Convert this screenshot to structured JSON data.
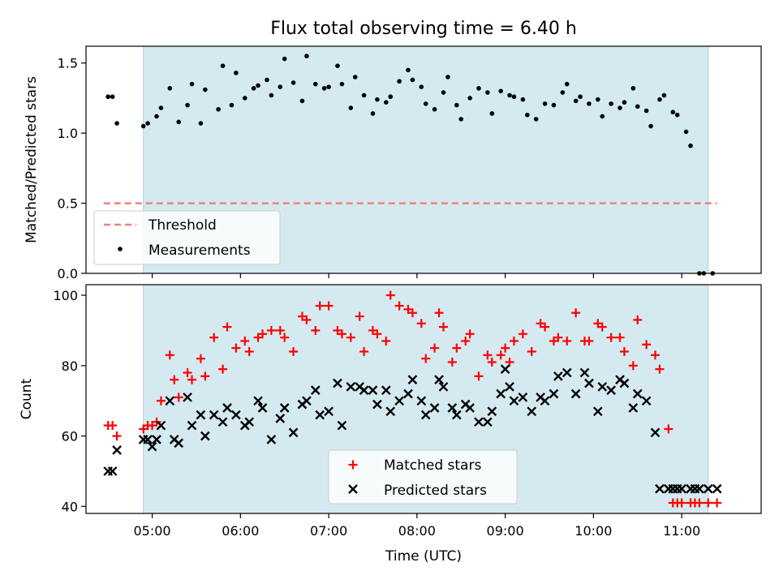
{
  "title": "Flux total observing time = 6.40 h",
  "colors": {
    "window_fill": "#d4eaf0",
    "window_edge": "#a9d3e0",
    "threshold": "#f08080",
    "measurements": "#000000",
    "matched": "#ff0000",
    "predicted": "#000000"
  },
  "chart_data": [
    {
      "type": "scatter",
      "ylabel": "Matched/Predicted stars",
      "xlim": [
        4.25,
        11.9
      ],
      "ylim": [
        0,
        1.62
      ],
      "yticks": [
        0,
        0.5,
        1.0,
        1.5
      ],
      "ytick_labels": [
        "0.0",
        "0.5",
        "1.0",
        "1.5"
      ],
      "observing_window": [
        4.9,
        11.3
      ],
      "legend": {
        "placement": "lower-left",
        "entries": [
          "Threshold",
          "Measurements"
        ]
      },
      "threshold": {
        "name": "Threshold",
        "y": 0.5,
        "x": [
          4.45,
          11.4
        ]
      },
      "series": [
        {
          "name": "Measurements",
          "x": [
            4.5,
            4.55,
            4.6,
            4.9,
            4.95,
            5.05,
            5.1,
            5.2,
            5.3,
            5.4,
            5.45,
            5.55,
            5.6,
            5.75,
            5.8,
            5.9,
            5.95,
            6.05,
            6.15,
            6.2,
            6.3,
            6.35,
            6.45,
            6.5,
            6.6,
            6.7,
            6.75,
            6.85,
            6.95,
            7.0,
            7.1,
            7.15,
            7.25,
            7.3,
            7.4,
            7.5,
            7.55,
            7.65,
            7.7,
            7.8,
            7.9,
            7.95,
            8.05,
            8.1,
            8.2,
            8.3,
            8.35,
            8.45,
            8.5,
            8.6,
            8.7,
            8.8,
            8.85,
            8.95,
            9.05,
            9.1,
            9.2,
            9.25,
            9.35,
            9.45,
            9.55,
            9.65,
            9.7,
            9.8,
            9.85,
            9.95,
            10.05,
            10.1,
            10.2,
            10.3,
            10.35,
            10.45,
            10.5,
            10.6,
            10.65,
            10.75,
            10.8,
            10.9,
            10.95,
            11.05,
            11.1,
            11.2,
            11.25,
            11.35
          ],
          "y": [
            1.26,
            1.26,
            1.07,
            1.05,
            1.07,
            1.12,
            1.18,
            1.32,
            1.08,
            1.2,
            1.35,
            1.07,
            1.31,
            1.17,
            1.48,
            1.2,
            1.43,
            1.25,
            1.32,
            1.34,
            1.38,
            1.27,
            1.33,
            1.53,
            1.36,
            1.23,
            1.55,
            1.35,
            1.32,
            1.33,
            1.48,
            1.35,
            1.18,
            1.4,
            1.27,
            1.14,
            1.24,
            1.22,
            1.26,
            1.37,
            1.45,
            1.38,
            1.33,
            1.21,
            1.17,
            1.29,
            1.4,
            1.2,
            1.1,
            1.25,
            1.32,
            1.29,
            1.14,
            1.3,
            1.27,
            1.26,
            1.24,
            1.13,
            1.1,
            1.21,
            1.2,
            1.29,
            1.35,
            1.23,
            1.26,
            1.21,
            1.24,
            1.12,
            1.21,
            1.18,
            1.22,
            1.32,
            1.19,
            1.16,
            1.05,
            1.24,
            1.27,
            1.15,
            1.13,
            1.01,
            0.91,
            0.0,
            0.0,
            0.0
          ]
        }
      ]
    },
    {
      "type": "scatter",
      "xlabel": "Time (UTC)",
      "ylabel": "Count",
      "xlim": [
        4.25,
        11.9
      ],
      "ylim": [
        38,
        103
      ],
      "xticks": [
        5,
        6,
        7,
        8,
        9,
        10,
        11
      ],
      "xtick_labels": [
        "05:00",
        "06:00",
        "07:00",
        "08:00",
        "09:00",
        "10:00",
        "11:00"
      ],
      "yticks": [
        40,
        60,
        80,
        100
      ],
      "ytick_labels": [
        "40",
        "60",
        "80",
        "100"
      ],
      "observing_window": [
        4.9,
        11.3
      ],
      "legend": {
        "placement": "lower-center",
        "entries": [
          "Matched stars",
          "Predicted stars"
        ]
      },
      "series": [
        {
          "name": "Matched stars",
          "x": [
            4.5,
            4.55,
            4.6,
            4.9,
            4.95,
            5.0,
            5.05,
            5.1,
            5.2,
            5.25,
            5.3,
            5.4,
            5.45,
            5.55,
            5.6,
            5.7,
            5.8,
            5.85,
            5.95,
            6.05,
            6.1,
            6.2,
            6.25,
            6.35,
            6.45,
            6.5,
            6.6,
            6.7,
            6.75,
            6.85,
            6.9,
            7.0,
            7.1,
            7.15,
            7.25,
            7.35,
            7.4,
            7.5,
            7.55,
            7.65,
            7.7,
            7.8,
            7.9,
            7.95,
            8.05,
            8.1,
            8.2,
            8.25,
            8.3,
            8.4,
            8.45,
            8.55,
            8.6,
            8.7,
            8.8,
            8.85,
            8.95,
            9.0,
            9.05,
            9.1,
            9.2,
            9.3,
            9.4,
            9.45,
            9.55,
            9.6,
            9.7,
            9.8,
            9.9,
            9.95,
            10.05,
            10.1,
            10.2,
            10.3,
            10.35,
            10.45,
            10.5,
            10.6,
            10.7,
            10.75,
            10.85,
            10.9,
            10.95,
            11.0,
            11.1,
            11.15,
            11.2,
            11.3,
            11.4
          ],
          "y": [
            63,
            63,
            60,
            62,
            63,
            63,
            64,
            70,
            83,
            76,
            71,
            78,
            76,
            82,
            77,
            88,
            79,
            91,
            85,
            87,
            84,
            88,
            89,
            90,
            90,
            88,
            84,
            94,
            93,
            90,
            97,
            97,
            90,
            89,
            88,
            94,
            84,
            90,
            89,
            87,
            100,
            97,
            96,
            95,
            92,
            82,
            85,
            95,
            91,
            81,
            85,
            87,
            89,
            77,
            83,
            81,
            83,
            85,
            81,
            87,
            89,
            84,
            92,
            91,
            87,
            88,
            87,
            95,
            87,
            87,
            92,
            91,
            88,
            88,
            84,
            80,
            93,
            86,
            83,
            79,
            62,
            41,
            41,
            41,
            41,
            41,
            41,
            41,
            41
          ]
        },
        {
          "name": "Predicted stars",
          "x": [
            4.5,
            4.55,
            4.6,
            4.9,
            4.95,
            5.0,
            5.05,
            5.1,
            5.2,
            5.25,
            5.3,
            5.4,
            5.45,
            5.55,
            5.6,
            5.7,
            5.8,
            5.85,
            5.95,
            6.05,
            6.1,
            6.2,
            6.25,
            6.35,
            6.45,
            6.5,
            6.6,
            6.7,
            6.75,
            6.85,
            6.9,
            7.0,
            7.1,
            7.15,
            7.25,
            7.35,
            7.4,
            7.5,
            7.55,
            7.65,
            7.7,
            7.8,
            7.9,
            7.95,
            8.05,
            8.1,
            8.2,
            8.25,
            8.3,
            8.4,
            8.45,
            8.55,
            8.6,
            8.7,
            8.8,
            8.85,
            8.95,
            9.0,
            9.05,
            9.1,
            9.2,
            9.3,
            9.4,
            9.45,
            9.55,
            9.6,
            9.7,
            9.8,
            9.9,
            9.95,
            10.05,
            10.1,
            10.2,
            10.3,
            10.35,
            10.45,
            10.5,
            10.6,
            10.7,
            10.75,
            10.85,
            10.9,
            10.95,
            11.0,
            11.1,
            11.15,
            11.2,
            11.3,
            11.4
          ],
          "y": [
            50,
            50,
            56,
            59,
            59,
            57,
            59,
            63,
            70,
            59,
            58,
            71,
            63,
            66,
            60,
            66,
            64,
            68,
            66,
            63,
            64,
            70,
            68,
            59,
            65,
            68,
            61,
            69,
            70,
            73,
            66,
            67,
            75,
            63,
            74,
            74,
            73,
            73,
            69,
            73,
            67,
            70,
            72,
            76,
            70,
            66,
            68,
            76,
            74,
            68,
            66,
            69,
            68,
            64,
            64,
            67,
            72,
            79,
            74,
            70,
            71,
            67,
            71,
            70,
            72,
            77,
            78,
            72,
            78,
            75,
            67,
            74,
            73,
            76,
            75,
            68,
            72,
            70,
            61,
            45,
            45,
            45,
            45,
            45,
            45,
            45,
            45,
            45,
            45
          ]
        }
      ]
    }
  ]
}
